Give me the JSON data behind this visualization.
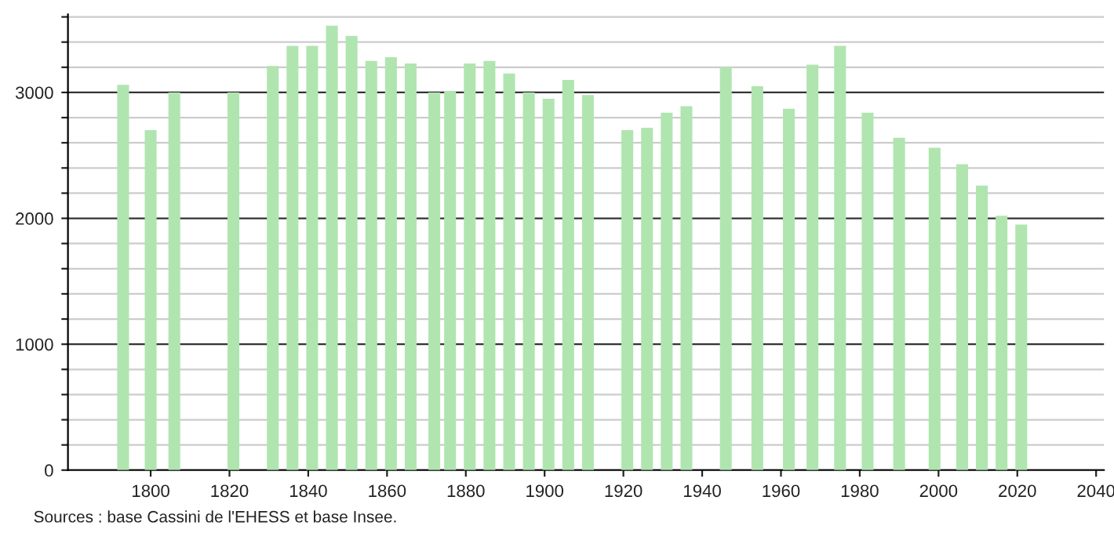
{
  "chart_data": {
    "type": "bar",
    "x": [
      1793,
      1800,
      1806,
      1821,
      1831,
      1836,
      1841,
      1846,
      1851,
      1856,
      1861,
      1866,
      1872,
      1876,
      1881,
      1886,
      1891,
      1896,
      1901,
      1906,
      1911,
      1921,
      1926,
      1931,
      1936,
      1946,
      1954,
      1962,
      1968,
      1975,
      1982,
      1990,
      1999,
      2006,
      2011,
      2016,
      2021
    ],
    "values": [
      3060,
      2700,
      3000,
      3000,
      3210,
      3370,
      3370,
      3530,
      3450,
      3250,
      3280,
      3230,
      3000,
      3010,
      3230,
      3250,
      3150,
      3000,
      2950,
      3100,
      2980,
      2700,
      2720,
      2840,
      2890,
      3200,
      3050,
      2870,
      3220,
      3370,
      2840,
      2640,
      2560,
      2430,
      2260,
      2020,
      1950
    ],
    "color": "#b0e5b0",
    "xlim": [
      1779,
      2042
    ],
    "xticks": [
      1800,
      1820,
      1840,
      1860,
      1880,
      1900,
      1920,
      1940,
      1960,
      1980,
      2000,
      2020,
      2040
    ],
    "ylim": [
      0,
      3620
    ],
    "yticks": [
      0,
      {
        "value": 200,
        "label": null
      },
      {
        "value": 400,
        "label": null
      },
      {
        "value": 600,
        "label": null
      },
      {
        "value": 800,
        "label": null
      },
      1000,
      {
        "value": 1200,
        "label": null
      },
      {
        "value": 1400,
        "label": null
      },
      {
        "value": 1600,
        "label": null
      },
      {
        "value": 1800,
        "label": null
      },
      2000,
      {
        "value": 2200,
        "label": null
      },
      {
        "value": 2400,
        "label": null
      },
      {
        "value": 2600,
        "label": null
      },
      {
        "value": 2800,
        "label": null
      },
      3000,
      {
        "value": 3200,
        "label": null
      },
      {
        "value": 3400,
        "label": null
      },
      {
        "value": 3600,
        "label": null
      }
    ],
    "grid": "y",
    "annotations": [
      "Sources : base Cassini de l'EHESS et base Insee."
    ]
  }
}
